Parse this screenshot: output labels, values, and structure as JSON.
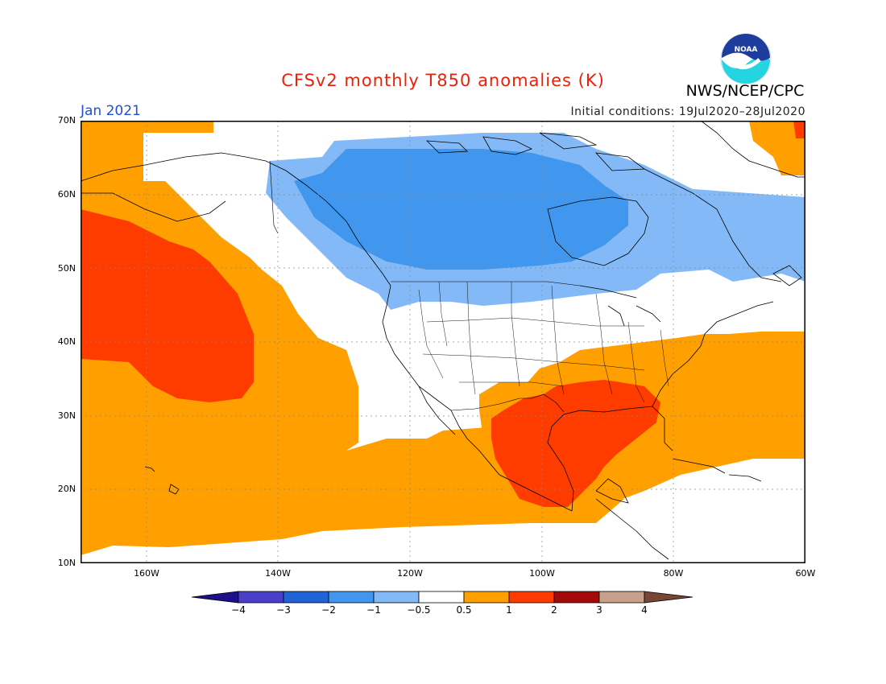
{
  "title": "CFSv2 monthly T850 anomalies (K)",
  "agency": "NWS/NCEP/CPC",
  "logo_text": "NOAA",
  "month": "Jan 2021",
  "initial_conditions": "Initial conditions: 19Jul2020–28Jul2020",
  "lat_labels": [
    "70N",
    "60N",
    "50N",
    "40N",
    "30N",
    "20N",
    "10N"
  ],
  "lon_labels": [
    "160W",
    "140W",
    "120W",
    "100W",
    "80W",
    "60W"
  ],
  "colorbar": {
    "labels": [
      "−4",
      "−3",
      "−2",
      "−1",
      "−0.5",
      "0.5",
      "1",
      "2",
      "3",
      "4"
    ],
    "colors": [
      "#1e0f8c",
      "#4b3fc8",
      "#1f63d4",
      "#4196ee",
      "#83b9f6",
      "#ffffff",
      "#ffa000",
      "#ff3c00",
      "#a50a0a",
      "#c8a08c",
      "#784634"
    ]
  },
  "chart_data": {
    "type": "heatmap",
    "variable": "T850 anomaly (K)",
    "lat_range": [
      10,
      70
    ],
    "lon_range": [
      -170,
      -60
    ],
    "regions": [
      {
        "level": "0.5 to 1",
        "area": "NE Pacific, Alaska coast and Gulf of Alaska"
      },
      {
        "level": "1 to 2",
        "area": "Central North Pacific near 35-55N, 150-170W"
      },
      {
        "level": "0.5 to 1",
        "area": "Subtropical Pacific south of 25N and west of Mexico"
      },
      {
        "level": "0.5 to 1",
        "area": "Southern and eastern United States"
      },
      {
        "level": "1 to 2",
        "area": "Texas, Gulf of Mexico and Southeast US"
      },
      {
        "level": "-1 to -0.5",
        "area": "Northern and eastern Canada"
      },
      {
        "level": "-2 to -1",
        "area": "Central Canada"
      },
      {
        "level": "0.5 to 1",
        "area": "Far NE corner near Greenland"
      },
      {
        "level": "1 to 2",
        "area": "Greenland edge"
      }
    ]
  }
}
